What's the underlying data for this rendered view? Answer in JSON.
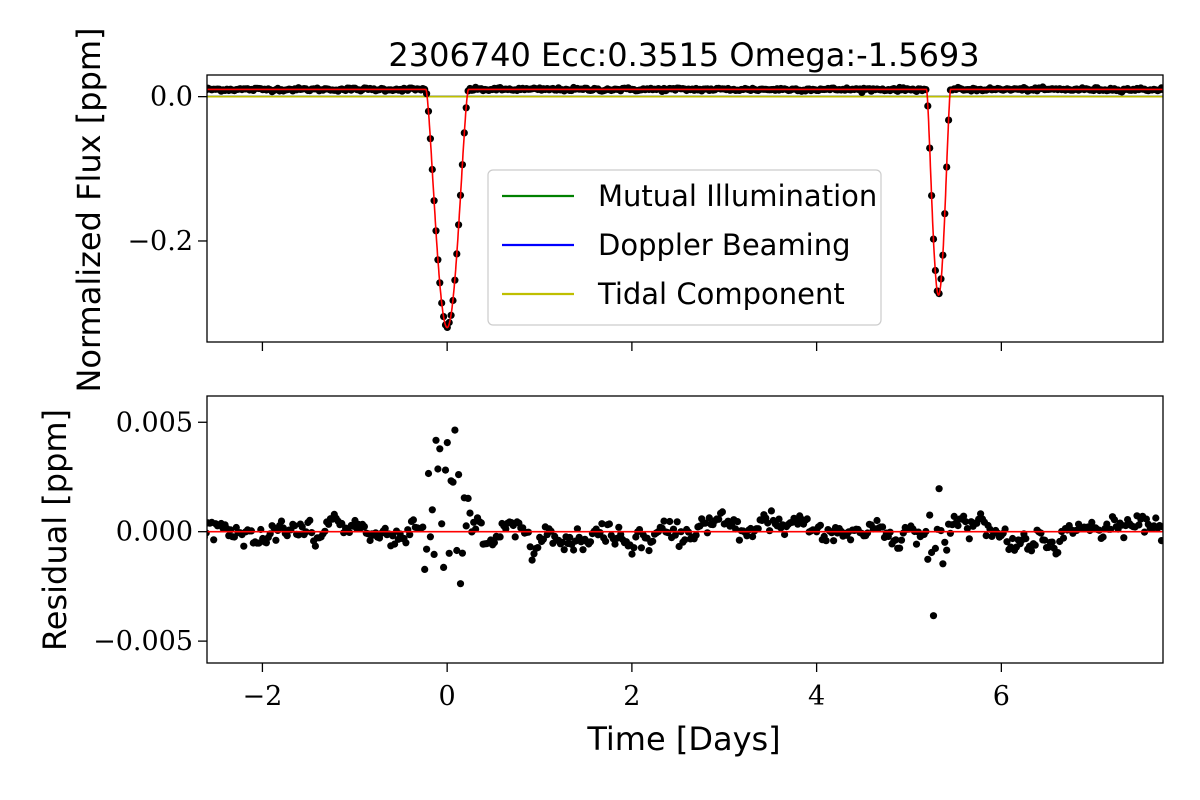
{
  "title": "2306740 Ecc:0.3515 Omega:-1.5693",
  "xlabel": "Time [Days]",
  "colors": {
    "points": "#000000",
    "model": "#ff0000",
    "mutual_illumination": "#008000",
    "doppler_beaming": "#0000ff",
    "tidal_component": "#bfbf00"
  },
  "chart_data": [
    {
      "type": "scatter",
      "panel": "top",
      "ylabel": "Normalized Flux [ppm]",
      "xlim": [
        -2.6,
        7.75
      ],
      "ylim": [
        -0.34,
        0.03
      ],
      "xticks": [
        -2,
        0,
        2,
        4,
        6
      ],
      "xtick_labels_shown": false,
      "yticks": [
        0.0,
        -0.2
      ],
      "ytick_labels": [
        "0.0",
        "−0.2"
      ],
      "baseline_flux": 0.01,
      "eclipses": [
        {
          "name": "primary",
          "center": 0.0,
          "depth": 0.33,
          "half_width": 0.23
        },
        {
          "name": "secondary",
          "center": 5.32,
          "depth": 0.285,
          "half_width": 0.13
        }
      ],
      "sampling_interval_days": 0.0204,
      "series": [
        {
          "name": "Mutual Illumination",
          "color": "#008000",
          "level": 0.0
        },
        {
          "name": "Doppler Beaming",
          "color": "#0000ff",
          "level": 0.0
        },
        {
          "name": "Tidal Component",
          "color": "#bfbf00",
          "level": 0.0
        }
      ],
      "legend": {
        "placement": "center",
        "entries": [
          "Mutual Illumination",
          "Doppler Beaming",
          "Tidal Component"
        ]
      },
      "grid": false
    },
    {
      "type": "scatter",
      "panel": "bottom",
      "ylabel": "Residual [ppm]",
      "xlim": [
        -2.6,
        7.75
      ],
      "ylim": [
        -0.006,
        0.0062
      ],
      "xticks": [
        -2,
        0,
        2,
        4,
        6
      ],
      "xtick_labels": [
        "−2",
        "0",
        "2",
        "4",
        "6"
      ],
      "yticks": [
        0.005,
        0.0,
        -0.005
      ],
      "ytick_labels": [
        "0.005",
        "0.000",
        "−0.005"
      ],
      "zero_line": 0.0,
      "noise_scatter_ppm": 0.0004,
      "eclipse_residual_amplitude": [
        {
          "center": 0.0,
          "amplitude": 0.005,
          "half_width": 0.25
        },
        {
          "center": 5.32,
          "amplitude": 0.0027,
          "half_width": 0.13
        }
      ],
      "sampling_interval_days": 0.0204,
      "grid": false
    }
  ]
}
